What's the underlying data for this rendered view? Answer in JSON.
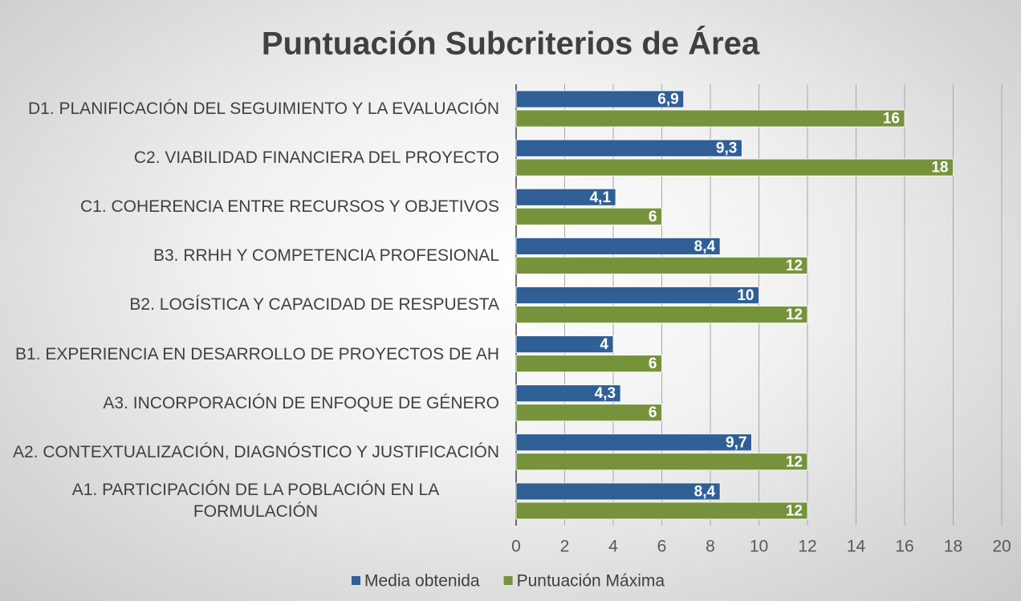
{
  "chart_data": {
    "type": "bar",
    "orientation": "horizontal",
    "title": "Puntuación Subcriterios de Área",
    "categories": [
      "D1. PLANIFICACIÓN DEL SEGUIMIENTO Y LA EVALUACIÓN",
      "C2. VIABILIDAD FINANCIERA DEL PROYECTO",
      "C1. COHERENCIA ENTRE RECURSOS Y OBJETIVOS",
      "B3. RRHH Y COMPETENCIA PROFESIONAL",
      "B2. LOGÍSTICA Y CAPACIDAD DE RESPUESTA",
      "B1. EXPERIENCIA EN DESARROLLO DE PROYECTOS DE AH",
      "A3. INCORPORACIÓN DE ENFOQUE DE GÉNERO",
      "A2. CONTEXTUALIZACIÓN, DIAGNÓSTICO Y JUSTIFICACIÓN",
      "A1. PARTICIPACIÓN DE LA POBLACIÓN EN LA FORMULACIÓN"
    ],
    "series": [
      {
        "name": "Media obtenida",
        "color": "#305f96",
        "values": [
          6.9,
          9.3,
          4.1,
          8.4,
          10,
          4,
          4.3,
          9.7,
          8.4
        ],
        "value_labels": [
          "6,9",
          "9,3",
          "4,1",
          "8,4",
          "10",
          "4",
          "4,3",
          "9,7",
          "8,4"
        ]
      },
      {
        "name": "Puntuación Máxima",
        "color": "#76933c",
        "values": [
          16,
          18,
          6,
          12,
          12,
          6,
          6,
          12,
          12
        ]
      }
    ],
    "xlim": [
      0,
      20
    ],
    "xticks": [
      0,
      2,
      4,
      6,
      8,
      10,
      12,
      14,
      16,
      18,
      20
    ],
    "grid": true,
    "legend": "bottom"
  }
}
